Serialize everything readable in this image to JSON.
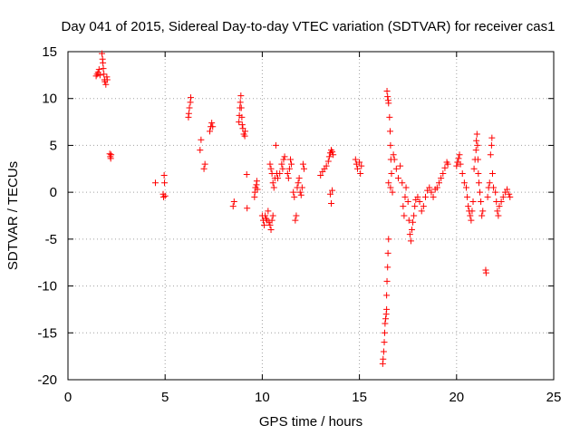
{
  "chart_data": {
    "type": "scatter",
    "title": "Day 041 of 2015, Sidereal Day-to-day VTEC variation (SDTVAR) for receiver cas1",
    "xlabel": "GPS time / hours",
    "ylabel": "SDTVAR / TECUs",
    "xlim": [
      0,
      25
    ],
    "ylim": [
      -20,
      15
    ],
    "xticks": [
      0,
      5,
      10,
      15,
      20,
      25
    ],
    "yticks": [
      -20,
      -15,
      -10,
      -5,
      0,
      5,
      10,
      15
    ],
    "xtick_labels": [
      "0",
      "5",
      "10",
      "15",
      "20",
      "25"
    ],
    "ytick_labels": [
      "-20",
      "-15",
      "-10",
      "-5",
      "0",
      "5",
      "10",
      "15"
    ],
    "grid": true,
    "marker": "+",
    "series": [
      {
        "name": "SDTVAR",
        "color": "#ff0000",
        "points": [
          [
            1.45,
            12.4
          ],
          [
            1.5,
            12.6
          ],
          [
            1.55,
            12.8
          ],
          [
            1.6,
            13.1
          ],
          [
            1.65,
            12.5
          ],
          [
            1.75,
            14.8
          ],
          [
            1.78,
            14.2
          ],
          [
            1.8,
            13.8
          ],
          [
            1.82,
            13.2
          ],
          [
            1.85,
            12.6
          ],
          [
            1.88,
            12.0
          ],
          [
            1.9,
            11.8
          ],
          [
            1.95,
            11.5
          ],
          [
            2.0,
            12.3
          ],
          [
            2.02,
            12.0
          ],
          [
            2.15,
            4.1
          ],
          [
            2.18,
            3.8
          ],
          [
            2.2,
            3.6
          ],
          [
            2.22,
            4.0
          ],
          [
            4.5,
            1.0
          ],
          [
            4.9,
            -0.2
          ],
          [
            4.92,
            -0.5
          ],
          [
            4.95,
            1.8
          ],
          [
            4.97,
            1.0
          ],
          [
            5.0,
            -0.4
          ],
          [
            6.2,
            8.0
          ],
          [
            6.22,
            8.4
          ],
          [
            6.25,
            9.0
          ],
          [
            6.3,
            9.6
          ],
          [
            6.32,
            10.1
          ],
          [
            6.8,
            4.5
          ],
          [
            6.85,
            5.6
          ],
          [
            7.0,
            2.5
          ],
          [
            7.05,
            3.0
          ],
          [
            7.3,
            6.5
          ],
          [
            7.35,
            7.0
          ],
          [
            7.4,
            7.4
          ],
          [
            7.45,
            7.0
          ],
          [
            8.5,
            -1.5
          ],
          [
            8.55,
            -1.0
          ],
          [
            8.8,
            7.5
          ],
          [
            8.82,
            8.2
          ],
          [
            8.85,
            9.0
          ],
          [
            8.87,
            9.6
          ],
          [
            8.9,
            10.3
          ],
          [
            8.92,
            9.0
          ],
          [
            8.95,
            8.0
          ],
          [
            8.97,
            7.2
          ],
          [
            9.0,
            6.8
          ],
          [
            9.05,
            6.2
          ],
          [
            9.1,
            6.0
          ],
          [
            9.12,
            6.5
          ],
          [
            9.2,
            1.9
          ],
          [
            9.22,
            -1.7
          ],
          [
            9.6,
            -0.5
          ],
          [
            9.62,
            0.0
          ],
          [
            9.65,
            0.5
          ],
          [
            9.7,
            0.8
          ],
          [
            9.72,
            1.2
          ],
          [
            9.75,
            0.3
          ],
          [
            10.0,
            -2.5
          ],
          [
            10.05,
            -3.0
          ],
          [
            10.1,
            -3.5
          ],
          [
            10.15,
            -2.5
          ],
          [
            10.2,
            -2.8
          ],
          [
            10.25,
            -3.0
          ],
          [
            10.3,
            -2.0
          ],
          [
            10.35,
            -3.2
          ],
          [
            10.4,
            -3.5
          ],
          [
            10.45,
            -4.0
          ],
          [
            10.5,
            -3.0
          ],
          [
            10.55,
            -2.5
          ],
          [
            10.4,
            3.0
          ],
          [
            10.45,
            2.5
          ],
          [
            10.5,
            2.0
          ],
          [
            10.55,
            1.0
          ],
          [
            10.6,
            0.5
          ],
          [
            10.65,
            1.5
          ],
          [
            10.7,
            5.0
          ],
          [
            10.75,
            2.0
          ],
          [
            10.8,
            1.5
          ],
          [
            10.9,
            2.0
          ],
          [
            11.0,
            3.0
          ],
          [
            11.05,
            2.5
          ],
          [
            11.1,
            3.5
          ],
          [
            11.15,
            3.8
          ],
          [
            11.3,
            2.0
          ],
          [
            11.35,
            1.5
          ],
          [
            11.4,
            2.5
          ],
          [
            11.45,
            3.5
          ],
          [
            11.5,
            3.0
          ],
          [
            11.6,
            0.0
          ],
          [
            11.65,
            -0.5
          ],
          [
            11.7,
            -3.0
          ],
          [
            11.75,
            -2.5
          ],
          [
            11.8,
            0.5
          ],
          [
            11.85,
            1.0
          ],
          [
            11.9,
            1.5
          ],
          [
            11.95,
            0.0
          ],
          [
            12.0,
            -0.3
          ],
          [
            12.05,
            0.5
          ],
          [
            12.1,
            3.0
          ],
          [
            12.15,
            2.5
          ],
          [
            13.0,
            1.8
          ],
          [
            13.1,
            2.2
          ],
          [
            13.2,
            2.5
          ],
          [
            13.3,
            2.8
          ],
          [
            13.4,
            3.3
          ],
          [
            13.45,
            3.8
          ],
          [
            13.5,
            4.2
          ],
          [
            13.55,
            4.5
          ],
          [
            13.6,
            4.3
          ],
          [
            13.65,
            4.0
          ],
          [
            13.5,
            -0.2
          ],
          [
            13.55,
            -1.2
          ],
          [
            13.6,
            0.2
          ],
          [
            14.8,
            3.5
          ],
          [
            14.85,
            3.0
          ],
          [
            14.9,
            2.5
          ],
          [
            15.0,
            3.2
          ],
          [
            15.05,
            2.0
          ],
          [
            15.1,
            2.8
          ],
          [
            16.2,
            -18.3
          ],
          [
            16.22,
            -17.8
          ],
          [
            16.25,
            -17.0
          ],
          [
            16.28,
            -16.0
          ],
          [
            16.3,
            -15.0
          ],
          [
            16.32,
            -14.0
          ],
          [
            16.35,
            -13.5
          ],
          [
            16.38,
            -13.0
          ],
          [
            16.4,
            -12.5
          ],
          [
            16.4,
            -11.0
          ],
          [
            16.42,
            -9.5
          ],
          [
            16.45,
            -8.0
          ],
          [
            16.47,
            -6.5
          ],
          [
            16.5,
            -5.0
          ],
          [
            16.42,
            10.8
          ],
          [
            16.45,
            10.2
          ],
          [
            16.48,
            9.8
          ],
          [
            16.5,
            9.5
          ],
          [
            16.55,
            8.0
          ],
          [
            16.58,
            6.5
          ],
          [
            16.6,
            5.0
          ],
          [
            16.62,
            3.5
          ],
          [
            16.65,
            2.0
          ],
          [
            16.5,
            1.0
          ],
          [
            16.6,
            0.5
          ],
          [
            16.7,
            0.0
          ],
          [
            16.75,
            4.0
          ],
          [
            16.8,
            3.5
          ],
          [
            16.9,
            2.5
          ],
          [
            17.0,
            1.5
          ],
          [
            17.1,
            2.8
          ],
          [
            17.2,
            1.0
          ],
          [
            17.25,
            -1.5
          ],
          [
            17.3,
            -2.5
          ],
          [
            17.35,
            -0.5
          ],
          [
            17.4,
            0.5
          ],
          [
            17.5,
            -1.0
          ],
          [
            17.55,
            -3.0
          ],
          [
            17.6,
            -4.5
          ],
          [
            17.65,
            -5.2
          ],
          [
            17.7,
            -4.0
          ],
          [
            17.75,
            -3.2
          ],
          [
            17.8,
            -2.5
          ],
          [
            17.85,
            -1.5
          ],
          [
            17.9,
            -0.8
          ],
          [
            18.0,
            -0.5
          ],
          [
            18.1,
            -1.0
          ],
          [
            18.2,
            -2.0
          ],
          [
            18.3,
            -1.5
          ],
          [
            18.4,
            -0.5
          ],
          [
            18.5,
            0.2
          ],
          [
            18.6,
            0.5
          ],
          [
            18.7,
            0.0
          ],
          [
            18.8,
            -0.5
          ],
          [
            18.9,
            0.3
          ],
          [
            19.0,
            0.5
          ],
          [
            19.1,
            1.0
          ],
          [
            19.2,
            1.5
          ],
          [
            19.3,
            2.0
          ],
          [
            19.4,
            2.6
          ],
          [
            19.5,
            3.2
          ],
          [
            19.55,
            3.0
          ],
          [
            20.0,
            2.8
          ],
          [
            20.05,
            3.2
          ],
          [
            20.1,
            3.6
          ],
          [
            20.15,
            4.0
          ],
          [
            20.2,
            3.0
          ],
          [
            20.3,
            2.0
          ],
          [
            20.4,
            1.0
          ],
          [
            20.5,
            0.5
          ],
          [
            20.55,
            -0.5
          ],
          [
            20.6,
            -1.5
          ],
          [
            20.65,
            -2.0
          ],
          [
            20.7,
            -2.5
          ],
          [
            20.75,
            -3.0
          ],
          [
            20.8,
            -2.0
          ],
          [
            20.85,
            -1.0
          ],
          [
            20.9,
            2.5
          ],
          [
            20.95,
            3.5
          ],
          [
            21.0,
            4.5
          ],
          [
            21.02,
            5.5
          ],
          [
            21.05,
            6.2
          ],
          [
            21.08,
            5.0
          ],
          [
            21.1,
            3.5
          ],
          [
            21.12,
            2.0
          ],
          [
            21.15,
            1.0
          ],
          [
            21.2,
            0.0
          ],
          [
            21.25,
            -1.0
          ],
          [
            21.3,
            -2.5
          ],
          [
            21.35,
            -2.0
          ],
          [
            21.5,
            -8.3
          ],
          [
            21.52,
            -8.6
          ],
          [
            21.6,
            -0.5
          ],
          [
            21.65,
            0.5
          ],
          [
            21.7,
            1.0
          ],
          [
            21.75,
            4.0
          ],
          [
            21.8,
            5.0
          ],
          [
            21.82,
            5.8
          ],
          [
            21.85,
            2.0
          ],
          [
            21.9,
            0.5
          ],
          [
            22.0,
            0.0
          ],
          [
            22.05,
            -1.0
          ],
          [
            22.1,
            -2.0
          ],
          [
            22.15,
            -2.5
          ],
          [
            22.2,
            -1.5
          ],
          [
            22.3,
            -1.0
          ],
          [
            22.4,
            -0.5
          ],
          [
            22.5,
            0.0
          ],
          [
            22.6,
            0.3
          ],
          [
            22.7,
            -0.2
          ],
          [
            22.75,
            -0.5
          ]
        ]
      }
    ]
  }
}
